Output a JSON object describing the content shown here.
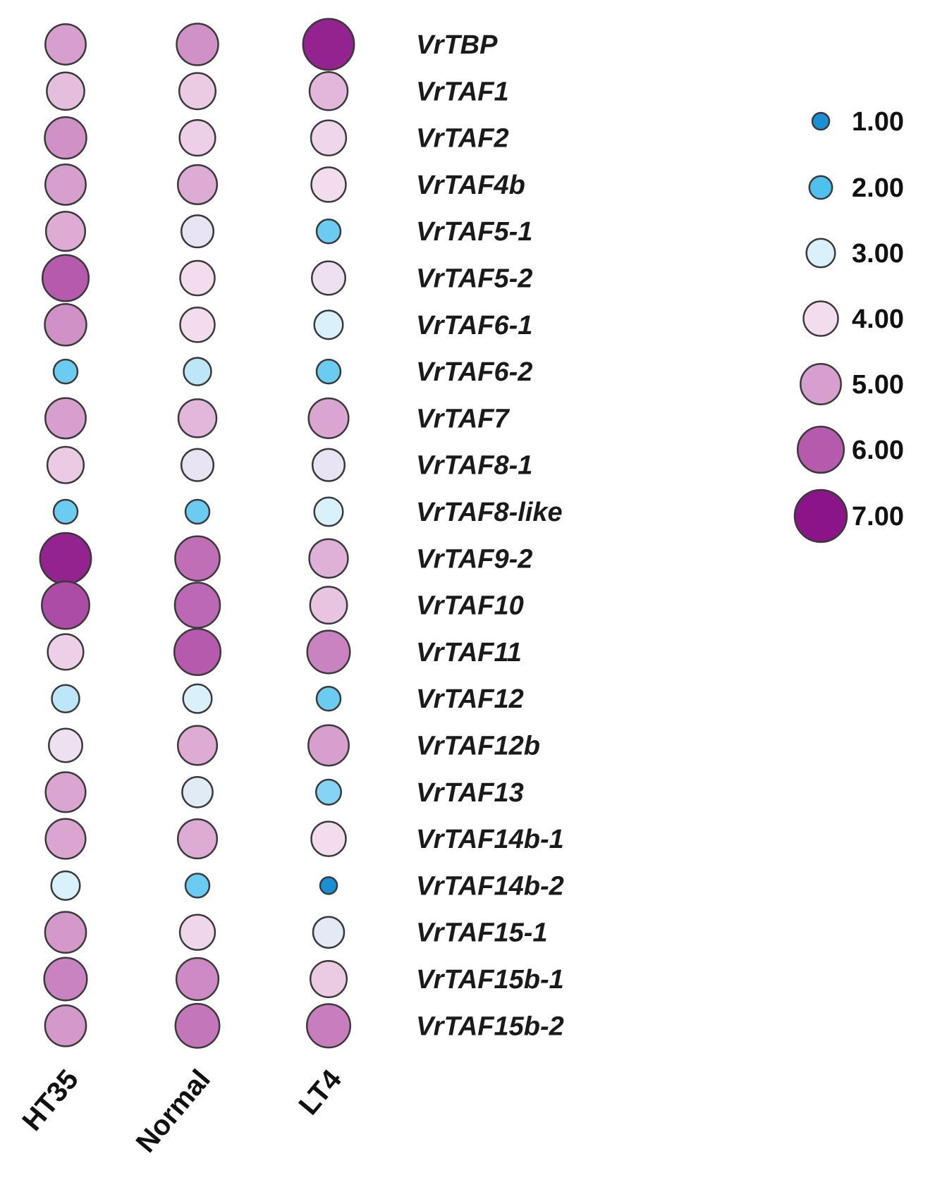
{
  "chart_data": {
    "type": "bubble-heatmap",
    "conditions": [
      "HT35",
      "Normal",
      "LT4"
    ],
    "genes": [
      "VrTBP",
      "VrTAF1",
      "VrTAF2",
      "VrTAF4b",
      "VrTAF5-1",
      "VrTAF5-2",
      "VrTAF6-1",
      "VrTAF6-2",
      "VrTAF7",
      "VrTAF8-1",
      "VrTAF8-like",
      "VrTAF9-2",
      "VrTAF10",
      "VrTAF11",
      "VrTAF12",
      "VrTAF12b",
      "VrTAF13",
      "VrTAF14b-1",
      "VrTAF14b-2",
      "VrTAF15-1",
      "VrTAF15b-1",
      "VrTAF15b-2"
    ],
    "series": [
      {
        "name": "HT35",
        "values": [
          5.0,
          4.5,
          5.2,
          5.0,
          4.8,
          6.0,
          5.2,
          2.2,
          5.0,
          4.3,
          2.2,
          6.8,
          6.2,
          4.2,
          2.8,
          3.8,
          4.9,
          4.9,
          3.0,
          5.1,
          5.4,
          5.1
        ]
      },
      {
        "name": "Normal",
        "values": [
          5.2,
          4.3,
          4.2,
          4.8,
          3.6,
          4.0,
          4.0,
          2.8,
          4.6,
          3.6,
          2.2,
          5.7,
          5.8,
          6.0,
          3.0,
          4.8,
          3.3,
          4.8,
          2.2,
          4.1,
          5.3,
          5.6
        ]
      },
      {
        "name": "LT4",
        "values": [
          6.8,
          4.6,
          4.1,
          4.0,
          2.2,
          3.8,
          3.0,
          2.2,
          4.9,
          3.6,
          3.0,
          4.7,
          4.4,
          5.4,
          2.2,
          5.0,
          2.4,
          4.0,
          1.0,
          3.4,
          4.3,
          5.5
        ]
      }
    ],
    "legend": {
      "values": [
        1.0,
        2.0,
        3.0,
        4.0,
        5.0,
        6.0,
        7.0
      ],
      "labels": [
        "1.00",
        "2.00",
        "3.00",
        "4.00",
        "5.00",
        "6.00",
        "7.00"
      ],
      "placement": "top-right"
    },
    "color_scale": [
      {
        "value": 1.0,
        "color": "#1a8fd6"
      },
      {
        "value": 2.0,
        "color": "#4fc1ee"
      },
      {
        "value": 3.0,
        "color": "#d9f1fa"
      },
      {
        "value": 4.0,
        "color": "#f3dcee"
      },
      {
        "value": 5.0,
        "color": "#d79fce"
      },
      {
        "value": 6.0,
        "color": "#b65aad"
      },
      {
        "value": 7.0,
        "color": "#8b1588"
      }
    ],
    "size_scale": "radius increases with value (1.00 smallest, 7.00 largest)"
  }
}
